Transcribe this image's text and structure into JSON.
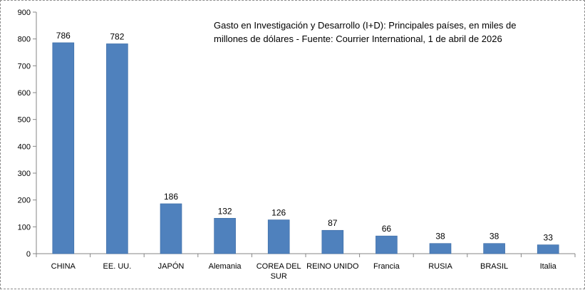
{
  "colors": {
    "bar": "#4f81bd",
    "bar_border": "#3a6aa4",
    "axis": "#868686",
    "grid": "#868686"
  },
  "chart_data": {
    "type": "bar",
    "title_lines": [
      "Gasto en Investigación y Desarrollo (I+D): Principales países, en miles de",
      "millones de dólares - Fuente: Courrier International, 1 de abril de 2026"
    ],
    "categories": [
      [
        "CHINA"
      ],
      [
        "EE. UU."
      ],
      [
        "JAPÓN"
      ],
      [
        "Alemania"
      ],
      [
        "COREA DEL",
        "SUR"
      ],
      [
        "REINO UNIDO"
      ],
      [
        "Francia"
      ],
      [
        "RUSIA"
      ],
      [
        "BRASIL"
      ],
      [
        "Italia"
      ]
    ],
    "values": [
      786,
      782,
      186,
      132,
      126,
      87,
      66,
      38,
      38,
      33
    ],
    "data_labels": [
      "786",
      "782",
      "186",
      "132",
      "126",
      "87",
      "66",
      "38",
      "38",
      "33"
    ],
    "y_ticks": [
      "0",
      "100",
      "200",
      "300",
      "400",
      "500",
      "600",
      "700",
      "800",
      "900"
    ],
    "ylim": [
      0,
      900
    ],
    "grid": "none",
    "legend": "none"
  }
}
